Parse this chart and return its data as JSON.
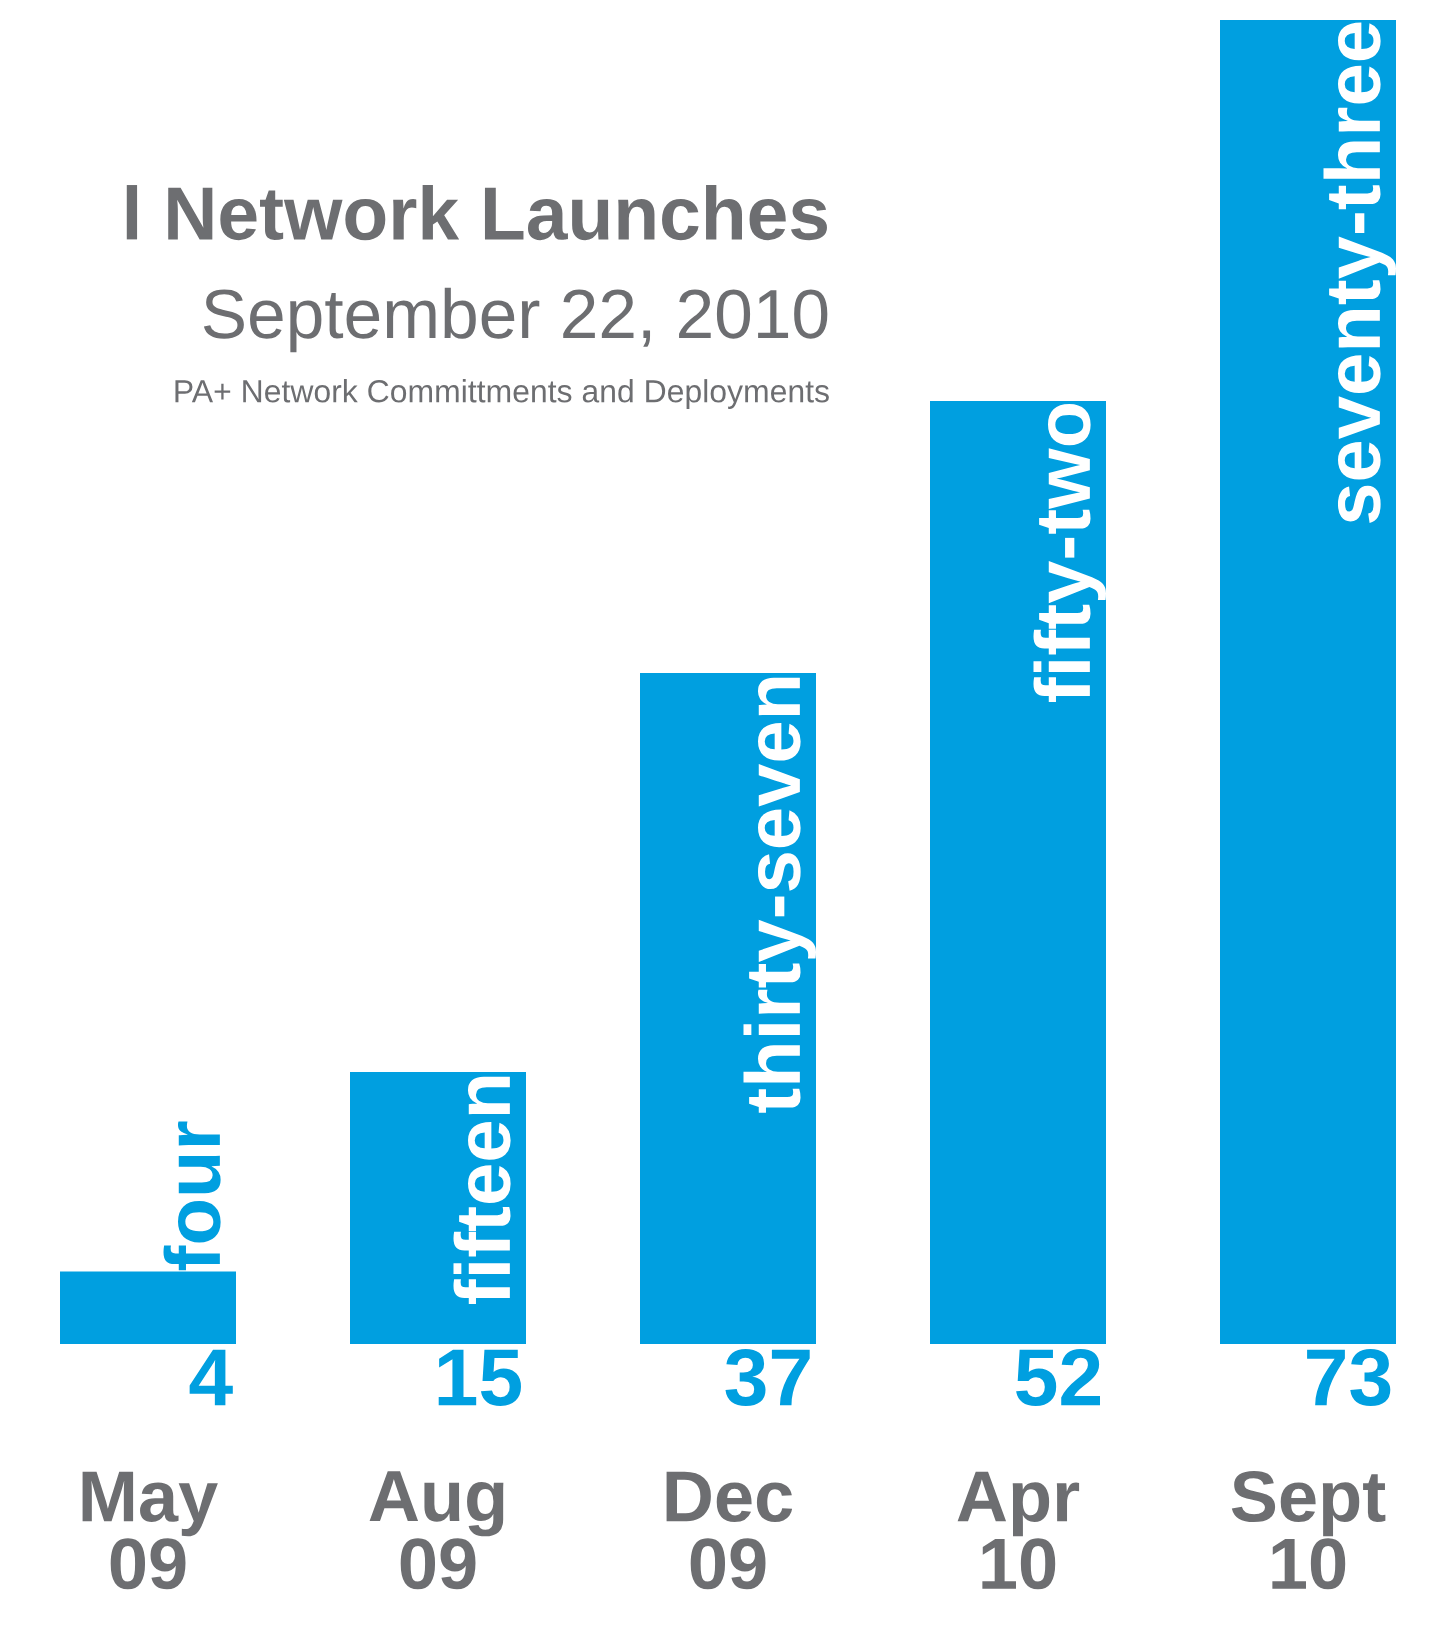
{
  "chart_data": {
    "type": "bar",
    "title": "l Network Launches",
    "subtitle": "September 22, 2010",
    "annotations": [
      "PA+ Network Committments and Deployments",
      {
        "text": "four",
        "x": "May\n09",
        "y": 4
      },
      {
        "text": "fifteen",
        "x": "Aug\n09",
        "y": 15
      },
      {
        "text": "thirty-seven",
        "x": "Dec\n09",
        "y": 37
      },
      {
        "text": "fifty-two",
        "x": "Apr\n10",
        "y": 52
      },
      {
        "text": "seventy-three",
        "x": "Sept\n10",
        "y": 73
      }
    ],
    "categories": [
      "May\n09",
      "Aug\n09",
      "Dec\n09",
      "Apr\n10",
      "Sept\n10"
    ],
    "values": [
      4,
      15,
      37,
      52,
      73
    ],
    "color": "#009fe0",
    "data_labels": true
  }
}
